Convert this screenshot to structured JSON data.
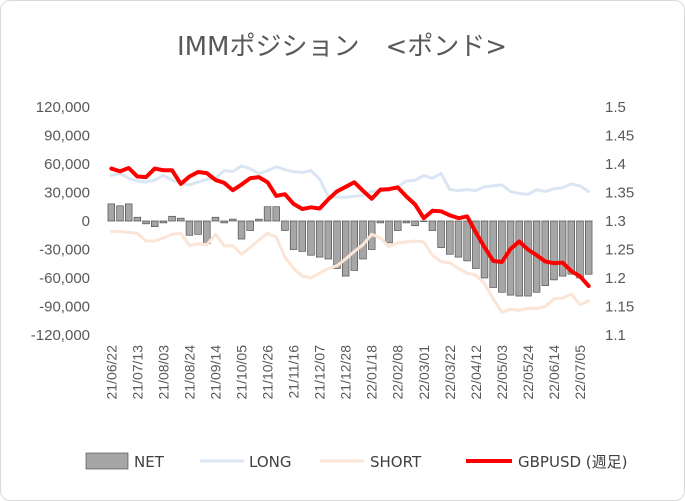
{
  "chart_data": {
    "type": "bar",
    "title": "IMMポジション　<ポンド>",
    "x": [
      "21/06/22",
      "21/06/29",
      "21/07/06",
      "21/07/13",
      "21/07/20",
      "21/07/27",
      "21/08/03",
      "21/08/10",
      "21/08/17",
      "21/08/24",
      "21/08/31",
      "21/09/07",
      "21/09/14",
      "21/09/21",
      "21/09/28",
      "21/10/05",
      "21/10/12",
      "21/10/19",
      "21/10/26",
      "21/11/02",
      "21/11/09",
      "21/11/16",
      "21/11/23",
      "21/11/30",
      "21/12/07",
      "21/12/14",
      "21/12/21",
      "21/12/28",
      "22/01/04",
      "22/01/11",
      "22/01/18",
      "22/01/25",
      "22/02/01",
      "22/02/08",
      "22/02/15",
      "22/02/22",
      "22/03/01",
      "22/03/08",
      "22/03/15",
      "22/03/22",
      "22/03/29",
      "22/04/05",
      "22/04/12",
      "22/04/19",
      "22/04/26",
      "22/05/03",
      "22/05/10",
      "22/05/17",
      "22/05/24",
      "22/05/31",
      "22/06/07",
      "22/06/14",
      "22/06/21",
      "22/06/28",
      "22/07/05",
      "22/07/12"
    ],
    "xtick_labels": [
      "21/06/22",
      "21/07/13",
      "21/08/03",
      "21/08/24",
      "21/09/14",
      "21/10/05",
      "21/10/26",
      "21/11/16",
      "21/12/07",
      "21/12/28",
      "22/01/18",
      "22/02/08",
      "22/03/01",
      "22/03/22",
      "22/04/12",
      "22/05/03",
      "22/05/24",
      "22/06/14",
      "22/07/05"
    ],
    "y_left": {
      "ticks": [
        "120,000",
        "90,000",
        "60,000",
        "30,000",
        "0",
        "-30,000",
        "-60,000",
        "-90,000",
        "-120,000"
      ],
      "ylim": [
        -120000,
        120000
      ]
    },
    "y_right": {
      "ticks": [
        "1.5",
        "1.45",
        "1.4",
        "1.35",
        "1.3",
        "1.25",
        "1.2",
        "1.15",
        "1.1"
      ],
      "ylim": [
        1.1,
        1.5
      ]
    },
    "series": [
      {
        "name": "NET",
        "type": "bar",
        "axis": "left",
        "color": "#a6a6a6",
        "values": [
          18000,
          16000,
          18000,
          4000,
          -3000,
          -6000,
          -2000,
          5000,
          3000,
          -15000,
          -14000,
          -24000,
          4000,
          -2000,
          2000,
          -19000,
          -10000,
          2000,
          15000,
          15000,
          -10000,
          -30000,
          -32000,
          -36000,
          -38000,
          -40000,
          -50000,
          -58000,
          -52000,
          -40000,
          -30000,
          -2000,
          -23000,
          -10000,
          -2000,
          -5000,
          0,
          -10000,
          -28000,
          -35000,
          -38000,
          -42000,
          -50000,
          -60000,
          -70000,
          -75000,
          -78000,
          -79000,
          -79000,
          -75000,
          -68000,
          -62000,
          -58000,
          -56000,
          -60000,
          -56000
        ]
      },
      {
        "name": "LONG",
        "type": "line",
        "axis": "left",
        "color": "#dbe6f4",
        "values": [
          48000,
          50000,
          45000,
          42000,
          41000,
          43000,
          48000,
          43000,
          40000,
          38000,
          41000,
          44000,
          45000,
          53000,
          52000,
          58000,
          55000,
          50000,
          53000,
          57000,
          54000,
          52000,
          51000,
          53000,
          44000,
          26000,
          25000,
          25000,
          26000,
          27000,
          31000,
          32000,
          32000,
          36000,
          42000,
          43000,
          48000,
          45000,
          50000,
          33000,
          32000,
          33000,
          32000,
          36000,
          37000,
          38000,
          31000,
          29000,
          28000,
          33000,
          31000,
          34000,
          35000,
          39000,
          37000,
          31000
        ]
      },
      {
        "name": "SHORT",
        "type": "line",
        "axis": "left",
        "color": "#fbe5d6",
        "values": [
          -11000,
          -11000,
          -12000,
          -13000,
          -21000,
          -21000,
          -18000,
          -14000,
          -13000,
          -26000,
          -24000,
          -25000,
          -14000,
          -26000,
          -26000,
          -35000,
          -28000,
          -20000,
          -13000,
          -17000,
          -38000,
          -50000,
          -58000,
          -60000,
          -55000,
          -50000,
          -47000,
          -40000,
          -32000,
          -25000,
          -14000,
          -18000,
          -27000,
          -23000,
          -22000,
          -21000,
          -22000,
          -36000,
          -43000,
          -44000,
          -50000,
          -55000,
          -57000,
          -66000,
          -82000,
          -96000,
          -93000,
          -94000,
          -92000,
          -92000,
          -90000,
          -82000,
          -81000,
          -77000,
          -88000,
          -84000
        ]
      },
      {
        "name": "GBPUSD (週足)",
        "type": "line",
        "axis": "right",
        "color": "#ff0000",
        "values": [
          1.392,
          1.387,
          1.393,
          1.378,
          1.377,
          1.392,
          1.389,
          1.389,
          1.365,
          1.378,
          1.386,
          1.384,
          1.372,
          1.367,
          1.354,
          1.364,
          1.375,
          1.377,
          1.368,
          1.344,
          1.347,
          1.33,
          1.321,
          1.324,
          1.322,
          1.338,
          1.352,
          1.36,
          1.368,
          1.353,
          1.339,
          1.355,
          1.356,
          1.359,
          1.343,
          1.329,
          1.305,
          1.318,
          1.317,
          1.31,
          1.305,
          1.308,
          1.28,
          1.254,
          1.23,
          1.228,
          1.251,
          1.264,
          1.25,
          1.24,
          1.229,
          1.226,
          1.227,
          1.212,
          1.203,
          1.186
        ]
      }
    ],
    "legend": "bottom",
    "grid": false
  }
}
